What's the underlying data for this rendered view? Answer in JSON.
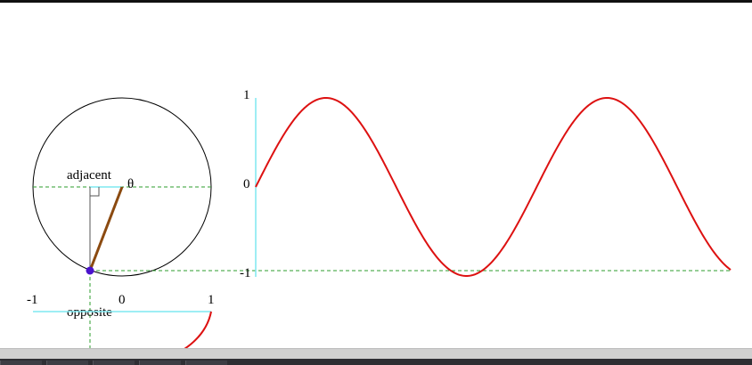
{
  "labels": {
    "adjacent": "adjacent",
    "opposite": "opposite",
    "theta": "θ"
  },
  "wave_axis": {
    "tick_top": "1",
    "tick_mid": "0",
    "tick_bottom": "-1"
  },
  "cos_axis": {
    "tick_left": "-1",
    "tick_mid": "0",
    "tick_right": "1"
  },
  "colors": {
    "circle": "#000000",
    "guide": "#2e9c2e",
    "axis": "#7fe8f0",
    "curve": "#dd1111",
    "radius": "#8b4a10",
    "point": "#4a12cc"
  },
  "chart_data": {
    "type": "line",
    "series": [
      {
        "values_fn": "sin",
        "x_range_radians": [
          0,
          10.62
        ],
        "ylim": [
          -1,
          1
        ]
      }
    ],
    "angle_theta_degrees": 250
  }
}
